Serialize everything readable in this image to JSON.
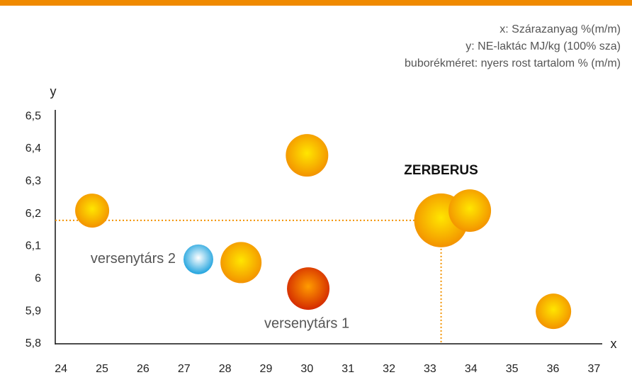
{
  "chart_data": {
    "type": "bubble",
    "annotations": [
      "x: Szárazanyag %(m/m)",
      "y: NE-laktác MJ/kg (100% sza)",
      "buborékméret: nyers rost tartalom % (m/m)"
    ],
    "x_label": "x",
    "y_label": "y",
    "x": [
      24.76,
      30.0,
      33.27,
      33.97,
      28.39,
      27.35,
      30.03,
      36.01
    ],
    "values": [
      6.21,
      6.38,
      6.18,
      6.21,
      6.05,
      6.06,
      5.97,
      5.9
    ],
    "sizes": [
      12,
      15,
      19,
      15,
      14.5,
      10.5,
      15,
      12.5
    ],
    "point_labels": [
      null,
      null,
      "ZERBERUS",
      null,
      null,
      "versenytárs 2",
      "versenytárs 1",
      null
    ],
    "colors": [
      "#f39200",
      "#f39200",
      "#f39200",
      "#f39200",
      "#f39200",
      "#1fa3de",
      "#d42a00",
      "#f39200"
    ],
    "center_colors": [
      "#ffe600",
      "#ffe600",
      "#ffe600",
      "#ffe600",
      "#ffe600",
      "#ffffff",
      "#ff9c00",
      "#ffe600"
    ],
    "guide_color": "#f39200",
    "xlim": [
      23.86,
      37.2
    ],
    "xticks": [
      24,
      25,
      26,
      27,
      28,
      29,
      30,
      31,
      32,
      33,
      34,
      35,
      36,
      37
    ],
    "ylim": [
      5.8,
      6.52
    ],
    "yticks": [
      {
        "value": 5.8,
        "label": "5,8"
      },
      {
        "value": 5.9,
        "label": "5,9"
      },
      6,
      {
        "value": 6.1,
        "label": "6,1"
      },
      {
        "value": 6.2,
        "label": "6,2"
      },
      {
        "value": 6.3,
        "label": "6,3"
      },
      {
        "value": 6.4,
        "label": "6,4"
      },
      {
        "value": 6.5,
        "label": "6,5"
      }
    ],
    "guide_point": 2
  }
}
